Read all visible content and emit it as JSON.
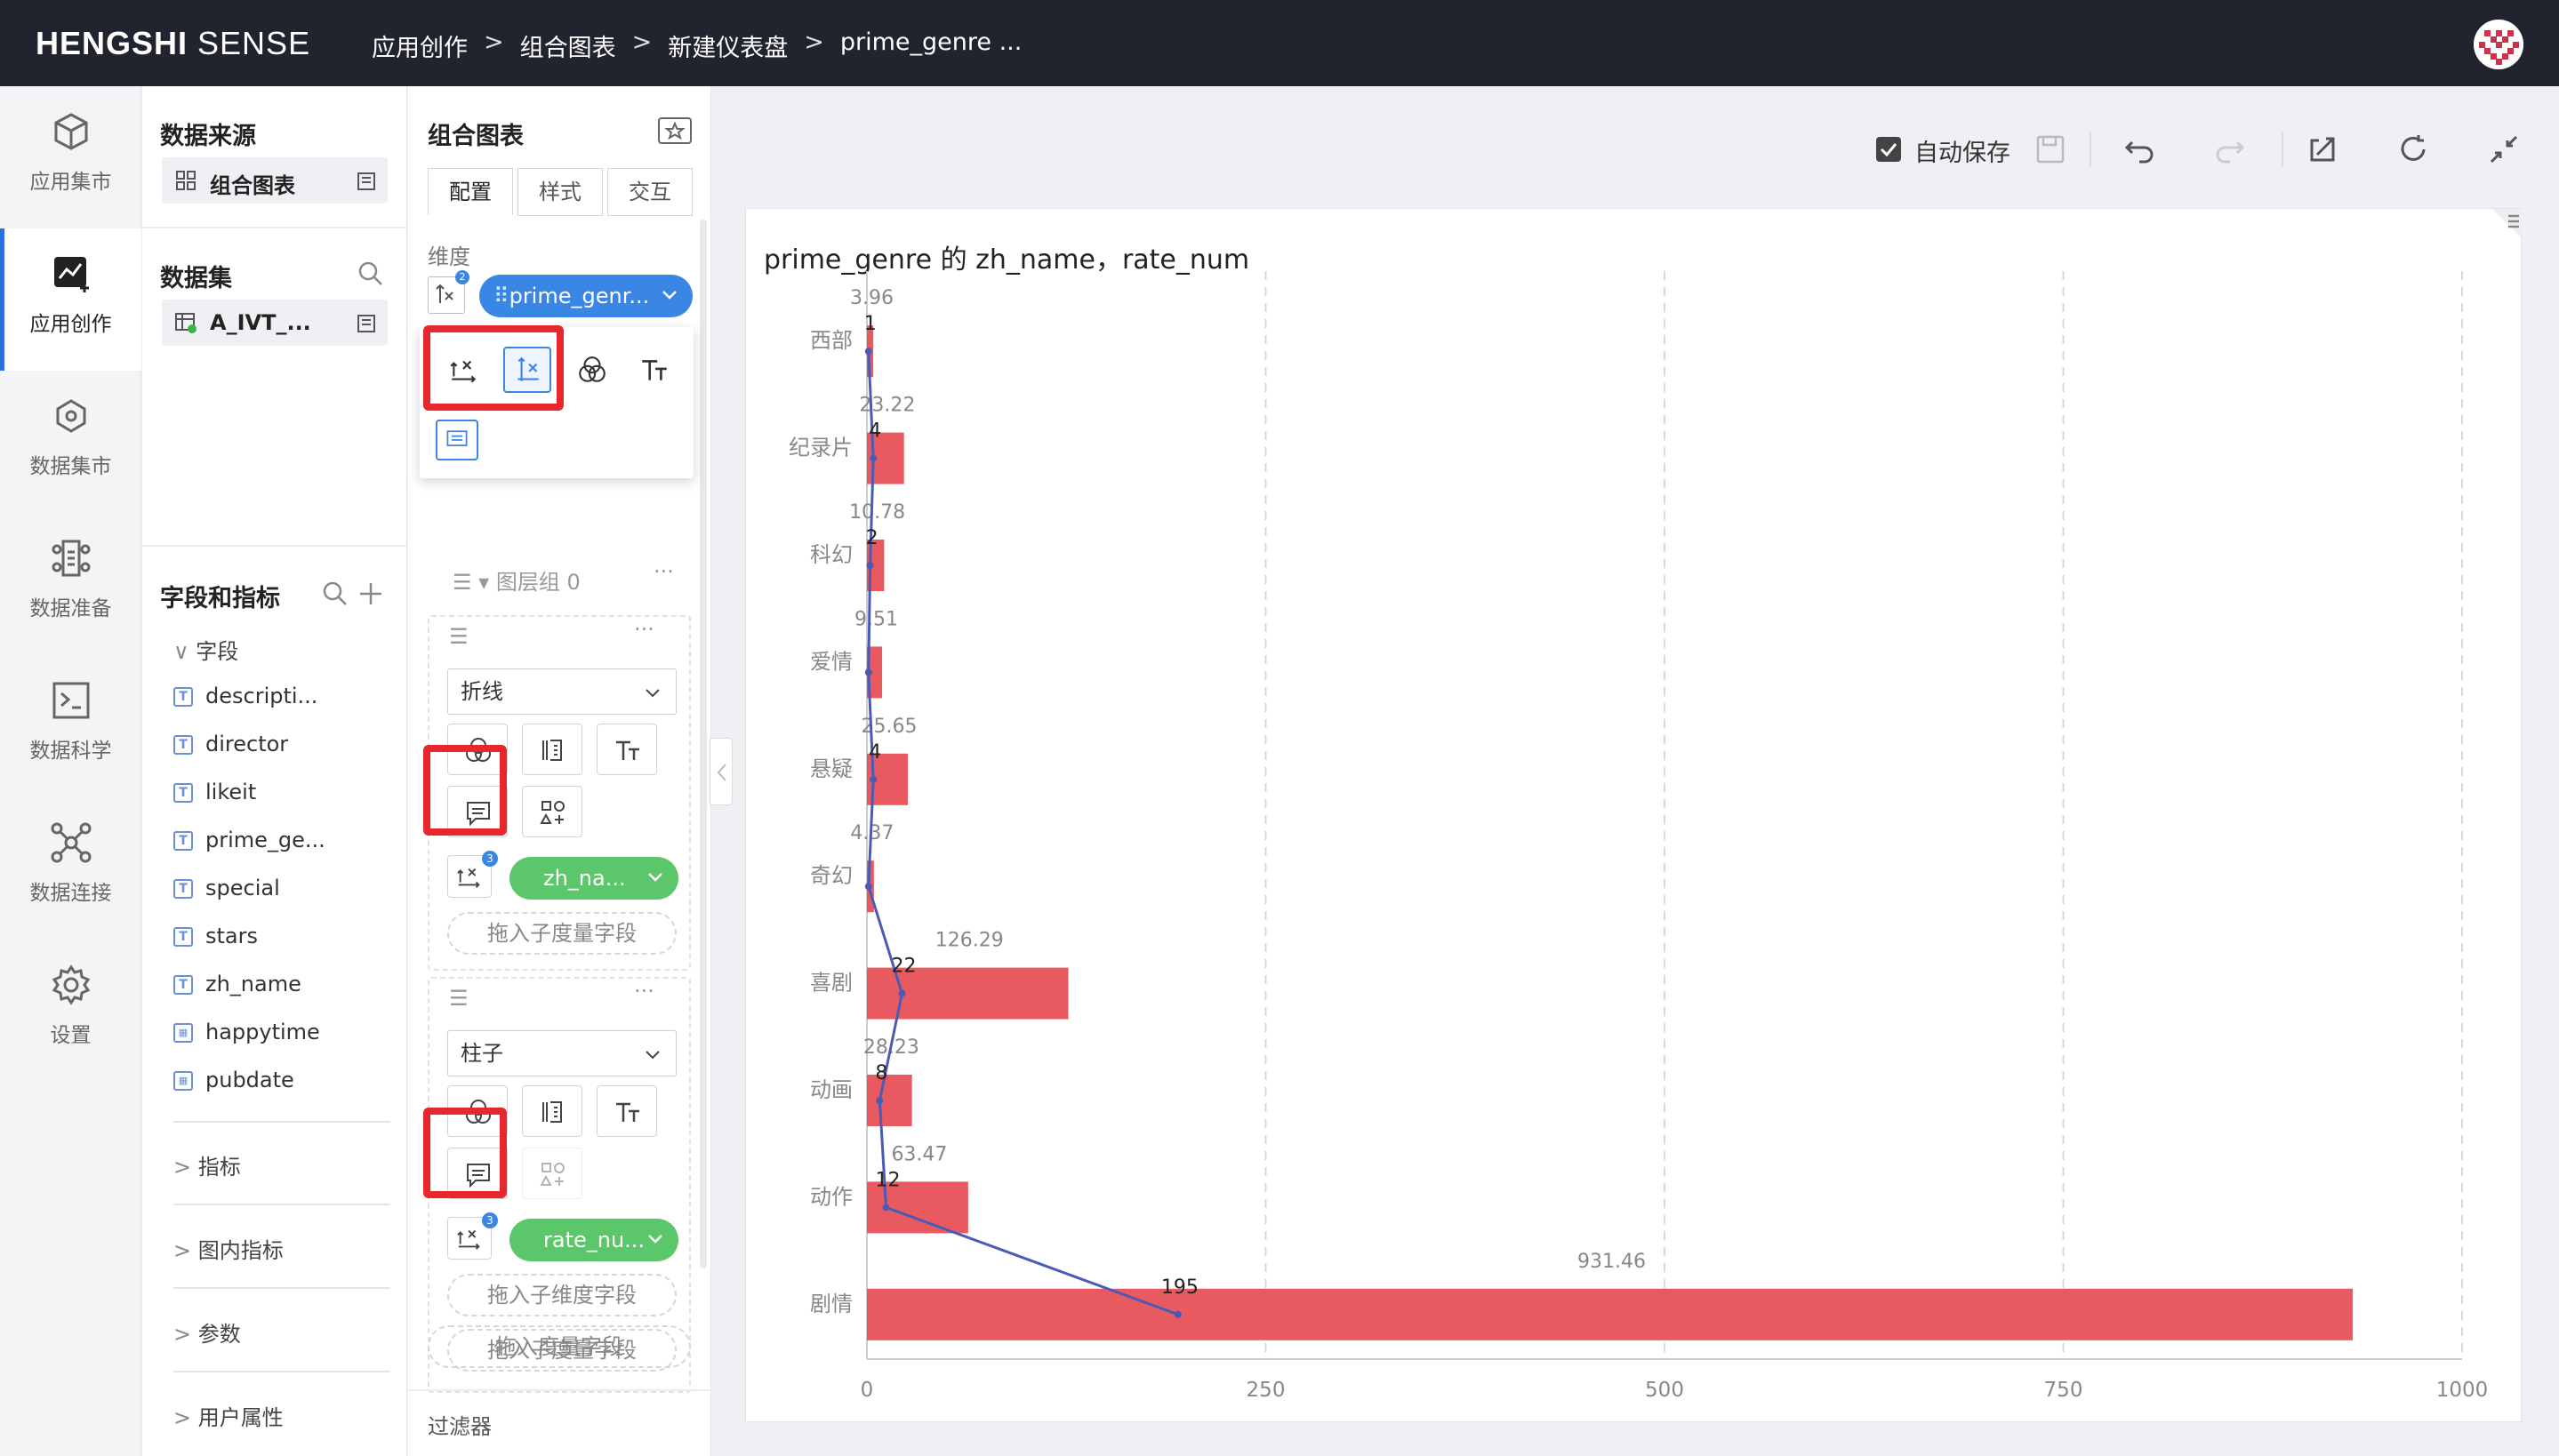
{
  "app": {
    "brand": "HENGSHI SENSE",
    "brand_bold": "HENGSHI",
    "brand_rest": " SENSE"
  },
  "breadcrumb": [
    "应用创作",
    ">",
    "组合图表",
    ">",
    "新建仪表盘",
    ">",
    "prime_genre ..."
  ],
  "nav": [
    {
      "label": "应用集市",
      "icon": "cube-icon",
      "active": false
    },
    {
      "label": "应用创作",
      "icon": "chart-create-icon",
      "active": true
    },
    {
      "label": "数据集市",
      "icon": "network-icon",
      "active": false
    },
    {
      "label": "数据准备",
      "icon": "data-prep-icon",
      "active": false
    },
    {
      "label": "数据科学",
      "icon": "terminal-icon",
      "active": false
    },
    {
      "label": "数据连接",
      "icon": "connect-icon",
      "active": false
    },
    {
      "label": "设置",
      "icon": "gear-icon",
      "active": false
    }
  ],
  "panel1": {
    "source_title": "数据来源",
    "source_item": "组合图表",
    "dataset_title": "数据集",
    "dataset_item": "A_IVT_...",
    "fields_title": "字段和指标",
    "fields_group": "字段",
    "fields": [
      {
        "name": "descripti...",
        "type": "T"
      },
      {
        "name": "director",
        "type": "T"
      },
      {
        "name": "likeit",
        "type": "T"
      },
      {
        "name": "prime_ge...",
        "type": "T"
      },
      {
        "name": "special",
        "type": "T"
      },
      {
        "name": "stars",
        "type": "T"
      },
      {
        "name": "zh_name",
        "type": "T"
      },
      {
        "name": "happytime",
        "type": "date"
      },
      {
        "name": "pubdate",
        "type": "date"
      }
    ],
    "sections": [
      "指标",
      "图内指标",
      "参数",
      "用户属性"
    ]
  },
  "panel2": {
    "title": "组合图表",
    "tabs": [
      "配置",
      "样式",
      "交互"
    ],
    "dimension_label": "维度",
    "dimension_pill": "prime_genr...",
    "dimension_badge": "2",
    "layer_group": "图层组 0",
    "layer1": {
      "type": "折线",
      "measure": "zh_na...",
      "badge": "3",
      "drop_measure": "拖入子度量字段"
    },
    "layer2": {
      "type": "柱子",
      "measure": "rate_nu...",
      "badge": "3",
      "drop_dimension": "拖入子维度字段",
      "drop_measure": "拖入子度量字段"
    },
    "drop_measure": "拖入度量字段",
    "filter_label": "过滤器"
  },
  "toolbar": {
    "autosave_label": "自动保存",
    "autosave_checked": true
  },
  "chart_title": "prime_genre 的 zh_name，rate_num",
  "colors": {
    "bar": "#e85a5f",
    "line": "#4a5bb7",
    "accent": "#3a86e4",
    "measure": "#5cc76a",
    "topbar": "#21232e",
    "highlight": "#e8262d"
  },
  "chart_data": {
    "type": "bar",
    "orientation": "horizontal",
    "categories": [
      "西部",
      "纪录片",
      "科幻",
      "爱情",
      "悬疑",
      "奇幻",
      "喜剧",
      "动画",
      "动作",
      "剧情"
    ],
    "series": [
      {
        "name": "rate_num",
        "type": "bar",
        "values": [
          3.96,
          23.22,
          10.78,
          9.51,
          25.65,
          4.37,
          126.29,
          28.23,
          63.47,
          931.46
        ],
        "labels": [
          "3.96",
          "23.22",
          "10.78",
          "9.51",
          "25.65",
          "4.37",
          "126.29",
          "28.23",
          "63.47",
          "931.46"
        ]
      },
      {
        "name": "zh_name",
        "type": "line",
        "values": [
          1,
          4,
          2,
          1,
          4,
          1,
          22,
          8,
          12,
          195
        ],
        "labels": [
          "1",
          "4",
          "2",
          "",
          "4",
          "",
          "22",
          "8",
          "12",
          "195"
        ]
      }
    ],
    "xlim": [
      0,
      1000
    ],
    "xticks": [
      "0",
      "250",
      "500",
      "750",
      "1000"
    ],
    "xtick_values": [
      0,
      250,
      500,
      750,
      1000
    ],
    "grid": true
  }
}
